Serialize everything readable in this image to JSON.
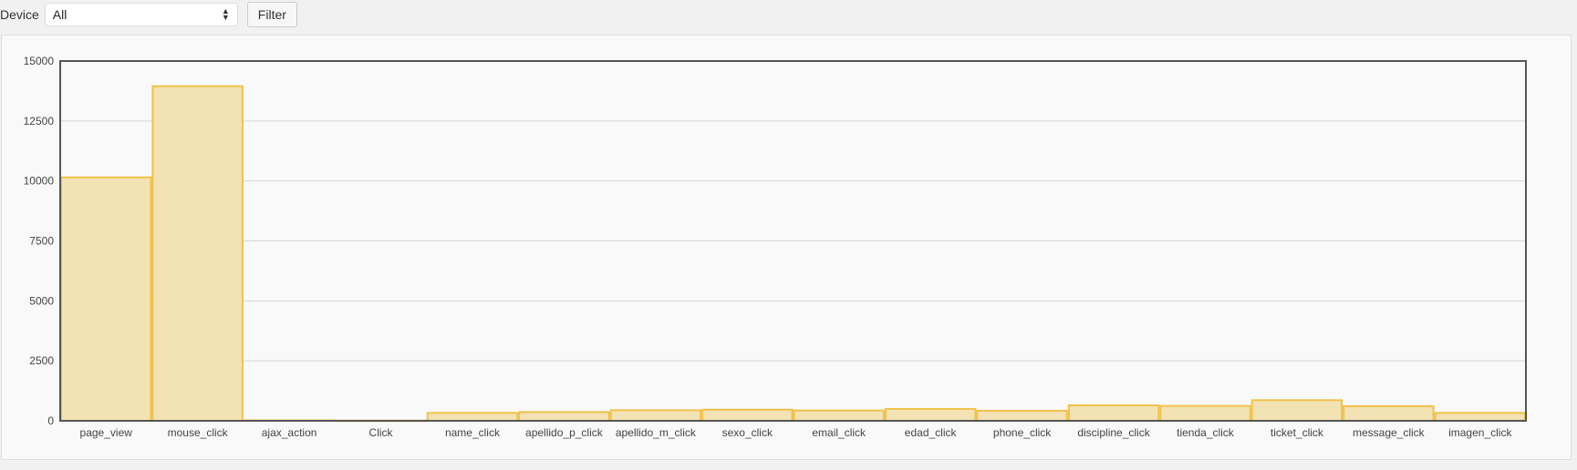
{
  "filter": {
    "label": "Device",
    "selected": "All",
    "button": "Filter"
  },
  "chart_data": {
    "type": "bar",
    "categories": [
      "page_view",
      "mouse_click",
      "ajax_action",
      "Click",
      "name_click",
      "apellido_p_click",
      "apellido_m_click",
      "sexo_click",
      "email_click",
      "edad_click",
      "phone_click",
      "discipline_click",
      "tienda_click",
      "ticket_click",
      "message_click",
      "imagen_click"
    ],
    "values": [
      10150,
      13950,
      20,
      10,
      330,
      365,
      440,
      465,
      430,
      495,
      420,
      645,
      620,
      860,
      610,
      330
    ],
    "yticks": [
      "0",
      "2500",
      "5000",
      "7500",
      "10000",
      "12500",
      "15000"
    ],
    "ylim": [
      0,
      15000
    ],
    "grid": true,
    "colors": {
      "fill": "#f3e2b4",
      "stroke": "#f0c24b"
    }
  }
}
